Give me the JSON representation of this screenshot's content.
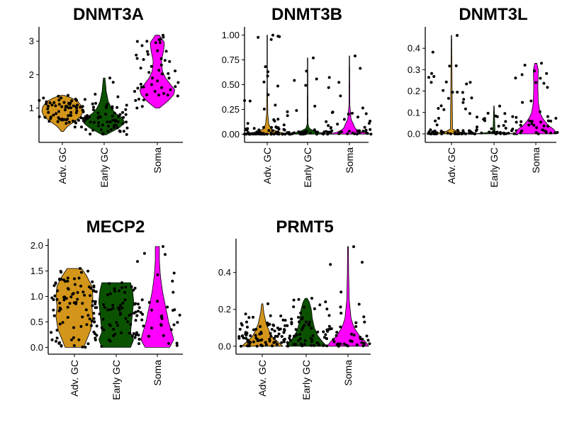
{
  "chart_data": [
    {
      "type": "violin",
      "title": "DNMT3A",
      "categories": [
        "Adv. GC",
        "Early GC",
        "Soma"
      ],
      "colors": [
        "#d4961a",
        "#0b5200",
        "#ff00ff"
      ],
      "yticks": [
        1,
        2,
        3
      ],
      "ytick_labels": [
        "1",
        "2",
        "3"
      ],
      "ylim": [
        0.1,
        3.3
      ],
      "series": [
        {
          "category": "Adv. GC",
          "min": 0.3,
          "max": 1.38,
          "profile": [
            [
              0.3,
              0.05
            ],
            [
              0.45,
              0.25
            ],
            [
              0.6,
              0.6
            ],
            [
              0.75,
              0.9
            ],
            [
              0.9,
              1.0
            ],
            [
              1.05,
              0.95
            ],
            [
              1.2,
              0.75
            ],
            [
              1.3,
              0.45
            ],
            [
              1.38,
              0.1
            ]
          ],
          "n": 70
        },
        {
          "category": "Early GC",
          "min": 0.2,
          "max": 1.9,
          "profile": [
            [
              0.2,
              0.1
            ],
            [
              0.4,
              0.7
            ],
            [
              0.55,
              1.0
            ],
            [
              0.7,
              0.9
            ],
            [
              0.85,
              0.55
            ],
            [
              1.0,
              0.35
            ],
            [
              1.2,
              0.2
            ],
            [
              1.5,
              0.1
            ],
            [
              1.9,
              0.04
            ]
          ],
          "n": 70
        },
        {
          "category": "Soma",
          "min": 1.0,
          "max": 3.18,
          "profile": [
            [
              1.0,
              0.1
            ],
            [
              1.2,
              0.5
            ],
            [
              1.4,
              0.8
            ],
            [
              1.55,
              0.85
            ],
            [
              1.7,
              0.65
            ],
            [
              1.9,
              0.4
            ],
            [
              2.1,
              0.25
            ],
            [
              2.4,
              0.2
            ],
            [
              2.7,
              0.3
            ],
            [
              2.95,
              0.35
            ],
            [
              3.18,
              0.1
            ]
          ],
          "n": 50
        }
      ]
    },
    {
      "type": "violin",
      "title": "DNMT3B",
      "categories": [
        "Adv. GC",
        "Early GC",
        "Soma"
      ],
      "colors": [
        "#d4961a",
        "#0b5200",
        "#ff00ff"
      ],
      "yticks": [
        0.0,
        0.25,
        0.5,
        0.75,
        1.0
      ],
      "ytick_labels": [
        "0.00",
        "0.25",
        "0.50",
        "0.75",
        "1.00"
      ],
      "ylim": [
        -0.04,
        1.04
      ],
      "series": [
        {
          "category": "Adv. GC",
          "min": 0.0,
          "max": 1.0,
          "profile": [
            [
              0.0,
              1.0
            ],
            [
              0.02,
              0.6
            ],
            [
              0.05,
              0.2
            ],
            [
              0.1,
              0.08
            ],
            [
              0.2,
              0.03
            ],
            [
              0.5,
              0.01
            ],
            [
              1.0,
              0.01
            ]
          ],
          "n": 80
        },
        {
          "category": "Early GC",
          "min": 0.0,
          "max": 0.77,
          "profile": [
            [
              0.0,
              1.0
            ],
            [
              0.02,
              0.5
            ],
            [
              0.05,
              0.1
            ],
            [
              0.1,
              0.02
            ],
            [
              0.77,
              0.01
            ]
          ],
          "n": 40
        },
        {
          "category": "Soma",
          "min": 0.0,
          "max": 0.79,
          "profile": [
            [
              0.0,
              1.0
            ],
            [
              0.02,
              0.6
            ],
            [
              0.05,
              0.3
            ],
            [
              0.1,
              0.2
            ],
            [
              0.15,
              0.08
            ],
            [
              0.3,
              0.02
            ],
            [
              0.79,
              0.01
            ]
          ],
          "n": 40
        }
      ]
    },
    {
      "type": "violin",
      "title": "DNMT3L",
      "categories": [
        "Adv. GC",
        "Early GC",
        "Soma"
      ],
      "colors": [
        "#d4961a",
        "#0b5200",
        "#ff00ff"
      ],
      "yticks": [
        0.0,
        0.1,
        0.2,
        0.3,
        0.4
      ],
      "ytick_labels": [
        "0.0",
        "0.1",
        "0.2",
        "0.3",
        "0.4"
      ],
      "ylim": [
        -0.02,
        0.48
      ],
      "series": [
        {
          "category": "Adv. GC",
          "min": 0.0,
          "max": 0.46,
          "profile": [
            [
              0.0,
              1.0
            ],
            [
              0.01,
              0.3
            ],
            [
              0.02,
              0.05
            ],
            [
              0.46,
              0.01
            ]
          ],
          "n": 60
        },
        {
          "category": "Early GC",
          "min": 0.0,
          "max": 0.13,
          "profile": [
            [
              0.0,
              1.0
            ],
            [
              0.005,
              0.4
            ],
            [
              0.01,
              0.05
            ],
            [
              0.13,
              0.01
            ]
          ],
          "n": 40
        },
        {
          "category": "Soma",
          "min": 0.0,
          "max": 0.33,
          "profile": [
            [
              0.0,
              1.0
            ],
            [
              0.02,
              0.9
            ],
            [
              0.04,
              0.6
            ],
            [
              0.07,
              0.35
            ],
            [
              0.1,
              0.2
            ],
            [
              0.15,
              0.12
            ],
            [
              0.22,
              0.1
            ],
            [
              0.3,
              0.12
            ],
            [
              0.33,
              0.05
            ]
          ],
          "n": 40
        }
      ]
    },
    {
      "type": "violin",
      "title": "MECP2",
      "categories": [
        "Adv. GC",
        "Early GC",
        "Soma"
      ],
      "colors": [
        "#d4961a",
        "#0b5200",
        "#ff00ff"
      ],
      "yticks": [
        0.0,
        0.5,
        1.0,
        1.5,
        2.0
      ],
      "ytick_labels": [
        "0.0",
        "0.5",
        "1.0",
        "1.5",
        "2.0"
      ],
      "ylim": [
        -0.05,
        2.05
      ],
      "series": [
        {
          "category": "Adv. GC",
          "min": 0.0,
          "max": 1.55,
          "profile": [
            [
              0.0,
              0.45
            ],
            [
              0.15,
              0.6
            ],
            [
              0.35,
              0.8
            ],
            [
              0.6,
              0.9
            ],
            [
              0.8,
              0.85
            ],
            [
              1.0,
              0.9
            ],
            [
              1.2,
              0.85
            ],
            [
              1.4,
              0.6
            ],
            [
              1.55,
              0.35
            ]
          ],
          "n": 90
        },
        {
          "category": "Early GC",
          "min": 0.0,
          "max": 1.27,
          "profile": [
            [
              0.0,
              0.7
            ],
            [
              0.15,
              0.85
            ],
            [
              0.3,
              0.7
            ],
            [
              0.5,
              0.75
            ],
            [
              0.7,
              0.8
            ],
            [
              0.9,
              0.85
            ],
            [
              1.1,
              0.8
            ],
            [
              1.27,
              0.7
            ]
          ],
          "n": 70
        },
        {
          "category": "Soma",
          "min": 0.0,
          "max": 1.98,
          "profile": [
            [
              0.0,
              0.6
            ],
            [
              0.15,
              0.8
            ],
            [
              0.3,
              0.7
            ],
            [
              0.5,
              0.55
            ],
            [
              0.7,
              0.45
            ],
            [
              0.9,
              0.35
            ],
            [
              1.1,
              0.25
            ],
            [
              1.4,
              0.15
            ],
            [
              1.7,
              0.1
            ],
            [
              1.98,
              0.1
            ]
          ],
          "n": 40
        }
      ]
    },
    {
      "type": "violin",
      "title": "PRMT5",
      "categories": [
        "Adv. GC",
        "Early GC",
        "Soma"
      ],
      "colors": [
        "#d4961a",
        "#0b5200",
        "#ff00ff"
      ],
      "yticks": [
        0.0,
        0.2,
        0.4
      ],
      "ytick_labels": [
        "0.0",
        "0.2",
        "0.4"
      ],
      "ylim": [
        -0.02,
        0.56
      ],
      "series": [
        {
          "category": "Adv. GC",
          "min": 0.0,
          "max": 0.23,
          "profile": [
            [
              0.0,
              1.0
            ],
            [
              0.02,
              0.8
            ],
            [
              0.05,
              0.5
            ],
            [
              0.08,
              0.35
            ],
            [
              0.12,
              0.2
            ],
            [
              0.18,
              0.08
            ],
            [
              0.23,
              0.03
            ]
          ],
          "n": 80
        },
        {
          "category": "Early GC",
          "min": 0.0,
          "max": 0.26,
          "profile": [
            [
              0.0,
              1.0
            ],
            [
              0.03,
              0.75
            ],
            [
              0.06,
              0.55
            ],
            [
              0.1,
              0.4
            ],
            [
              0.15,
              0.3
            ],
            [
              0.2,
              0.25
            ],
            [
              0.24,
              0.15
            ],
            [
              0.26,
              0.05
            ]
          ],
          "n": 70
        },
        {
          "category": "Soma",
          "min": 0.0,
          "max": 0.54,
          "profile": [
            [
              0.0,
              1.0
            ],
            [
              0.02,
              0.9
            ],
            [
              0.05,
              0.6
            ],
            [
              0.1,
              0.3
            ],
            [
              0.15,
              0.15
            ],
            [
              0.25,
              0.06
            ],
            [
              0.4,
              0.03
            ],
            [
              0.54,
              0.02
            ]
          ],
          "n": 40
        }
      ]
    }
  ]
}
